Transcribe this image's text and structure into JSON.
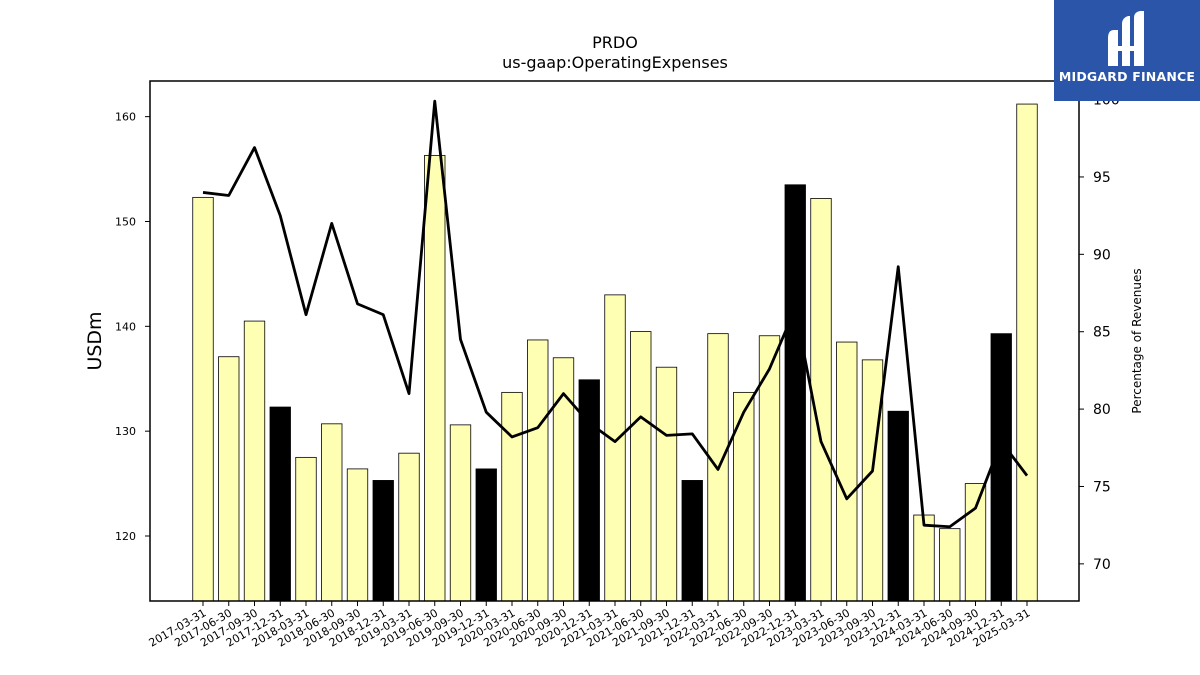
{
  "chart_data": {
    "type": "bar",
    "title": "PRDO",
    "subtitle": "us-gaap:OperatingExpenses",
    "ylabel": "USDm",
    "y2label": "Percentage of Revenues",
    "ylim": [
      113.8,
      163.4
    ],
    "y2lim": [
      67.6,
      101.2
    ],
    "yticks": [
      120,
      130,
      140,
      150,
      160
    ],
    "y2ticks": [
      70,
      75,
      80,
      85,
      90,
      95,
      100
    ],
    "categories": [
      "2017-03-31",
      "2017-06-30",
      "2017-09-30",
      "2017-12-31",
      "2018-03-31",
      "2018-06-30",
      "2018-09-30",
      "2018-12-31",
      "2019-03-31",
      "2019-06-30",
      "2019-09-30",
      "2019-12-31",
      "2020-03-31",
      "2020-06-30",
      "2020-09-30",
      "2020-12-31",
      "2021-03-31",
      "2021-06-30",
      "2021-09-30",
      "2021-12-31",
      "2022-03-31",
      "2022-06-30",
      "2022-09-30",
      "2022-12-31",
      "2023-03-31",
      "2023-06-30",
      "2023-09-30",
      "2023-12-31",
      "2024-03-31",
      "2024-06-30",
      "2024-09-30",
      "2024-12-31",
      "2025-03-31"
    ],
    "series": [
      {
        "type": "bar",
        "axis": "left",
        "values": [
          152.3,
          137.1,
          140.5,
          132.3,
          127.5,
          130.7,
          126.4,
          125.3,
          127.9,
          156.3,
          130.6,
          126.4,
          133.7,
          138.7,
          137.0,
          134.9,
          143.0,
          139.5,
          136.1,
          125.3,
          139.3,
          133.7,
          139.1,
          153.5,
          152.2,
          138.5,
          136.8,
          131.9,
          122.0,
          120.7,
          125.0,
          139.3,
          161.2
        ],
        "highlight": [
          false,
          false,
          false,
          true,
          false,
          false,
          false,
          true,
          false,
          false,
          false,
          true,
          false,
          false,
          false,
          true,
          false,
          false,
          false,
          true,
          false,
          false,
          false,
          true,
          false,
          false,
          false,
          true,
          false,
          false,
          false,
          true,
          false
        ]
      },
      {
        "type": "line",
        "axis": "right",
        "values": [
          94.0,
          93.8,
          96.9,
          92.5,
          86.1,
          92.0,
          86.8,
          86.1,
          81.0,
          99.9,
          84.5,
          79.8,
          78.2,
          78.8,
          81.0,
          79.1,
          77.9,
          79.5,
          78.3,
          78.4,
          76.1,
          79.8,
          82.6,
          86.5,
          77.9,
          74.2,
          76.0,
          89.2,
          72.5,
          72.4,
          73.6,
          77.9,
          75.7
        ]
      }
    ],
    "colors": {
      "bar": "#ffffb3",
      "bar_highlight": "#000000",
      "line": "#000000",
      "edge": "#000000"
    },
    "grid": false,
    "legend": "none"
  },
  "logo": {
    "text": "MIDGARD FINANCE",
    "icon": "midgard-logo-icon",
    "background": "#2a55a8"
  }
}
